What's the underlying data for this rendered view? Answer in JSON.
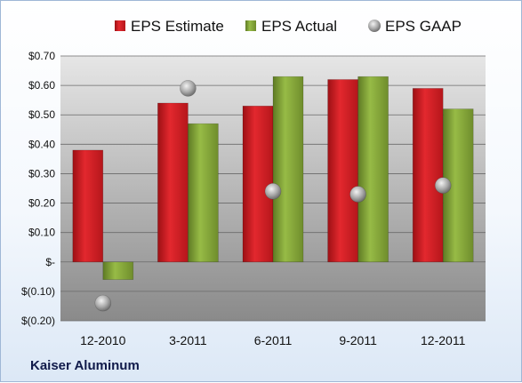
{
  "footer": {
    "company": "Kaiser Aluminum"
  },
  "colors": {
    "estimate": "#d42127",
    "actual": "#86a83a",
    "gaap": "#a8a8a8"
  },
  "chart_data": {
    "type": "bar",
    "categories": [
      "12-2010",
      "3-2011",
      "6-2011",
      "9-2011",
      "12-2011"
    ],
    "series": [
      {
        "name": "EPS Estimate",
        "kind": "bar",
        "values": [
          0.38,
          0.54,
          0.53,
          0.62,
          0.59
        ]
      },
      {
        "name": "EPS Actual",
        "kind": "bar",
        "values": [
          -0.06,
          0.47,
          0.63,
          0.63,
          0.52
        ]
      },
      {
        "name": "EPS GAAP",
        "kind": "scatter",
        "values": [
          -0.14,
          0.59,
          0.24,
          0.23,
          0.26
        ]
      }
    ],
    "yticks": [
      0.7,
      0.6,
      0.5,
      0.4,
      0.3,
      0.2,
      0.1,
      0,
      -0.1,
      -0.2
    ],
    "ytick_labels": [
      "$0.70",
      "$0.60",
      "$0.50",
      "$0.40",
      "$0.30",
      "$0.20",
      "$0.10",
      "$-",
      "$(0.10)",
      "$(0.20)"
    ],
    "ylim": [
      -0.2,
      0.7
    ],
    "grid": true,
    "legend_position": "top"
  }
}
